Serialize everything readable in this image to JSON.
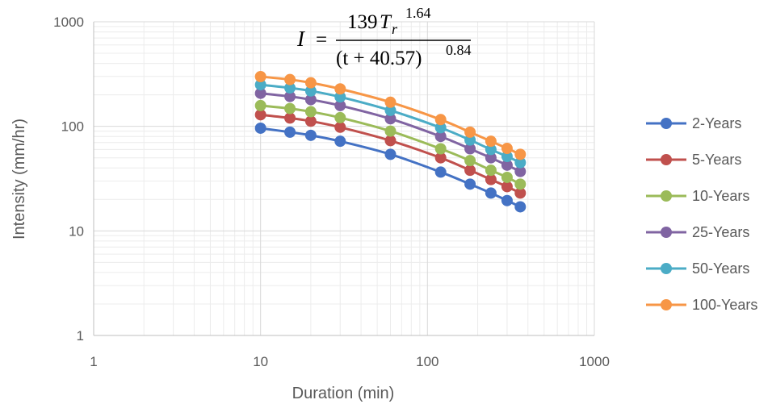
{
  "chart_data": {
    "type": "line",
    "xscale": "log",
    "yscale": "log",
    "xlabel": "Duration (min)",
    "ylabel": "Intensity (mm/hr)",
    "xlim": [
      1,
      1000
    ],
    "ylim": [
      1,
      1000
    ],
    "xticks": [
      "1",
      "10",
      "100",
      "1000"
    ],
    "yticks": [
      "1",
      "10",
      "100",
      "1000"
    ],
    "grid": true,
    "legend": "right",
    "x": [
      10,
      15,
      20,
      30,
      60,
      120,
      180,
      240,
      300,
      360
    ],
    "series": [
      {
        "name": "2-Years",
        "color": "#4472C4",
        "values": [
          96,
          88,
          82,
          72,
          54,
          36.5,
          28,
          23,
          19.5,
          17
        ]
      },
      {
        "name": "5-Years",
        "color": "#C0504D",
        "values": [
          129,
          120,
          112,
          98,
          73,
          50,
          38,
          31,
          26.5,
          23
        ]
      },
      {
        "name": "10-Years",
        "color": "#9BBB59",
        "values": [
          158,
          148,
          138,
          121,
          90,
          61,
          47,
          38,
          32.5,
          28
        ]
      },
      {
        "name": "25-Years",
        "color": "#8064A2",
        "values": [
          207,
          193,
          180,
          158,
          118,
          80,
          61,
          50,
          42.5,
          37
        ]
      },
      {
        "name": "50-Years",
        "color": "#4BACC6",
        "values": [
          250,
          233,
          218,
          191,
          142,
          97,
          74,
          60,
          51.5,
          45
        ]
      },
      {
        "name": "100-Years",
        "color": "#F79646",
        "values": [
          299,
          280,
          261,
          228,
          170,
          116,
          88,
          72,
          61.5,
          54
        ]
      }
    ],
    "equation": {
      "lhs": "I",
      "equals": "=",
      "numerator": "139",
      "numerator_var": "T",
      "numerator_sub": "r",
      "numerator_exp": "1.64",
      "denominator": "(t + 40.57)",
      "denominator_exp": "0.84"
    }
  }
}
